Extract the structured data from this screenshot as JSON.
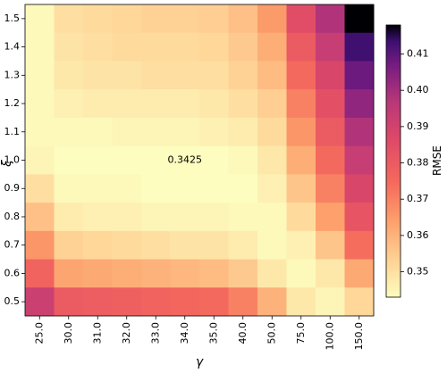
{
  "chart_data": {
    "type": "heatmap",
    "xlabel": "γ",
    "ylabel": "ξ",
    "x": [
      "25.0",
      "30.0",
      "31.0",
      "32.0",
      "33.0",
      "34.0",
      "35.0",
      "40.0",
      "50.0",
      "75.0",
      "100.0",
      "150.0"
    ],
    "y": [
      "1.5",
      "1.4",
      "1.3",
      "1.2",
      "1.1",
      "1.0",
      "0.9",
      "0.8",
      "0.7",
      "0.6",
      "0.5"
    ],
    "values": [
      [
        0.344,
        0.35,
        0.351,
        0.352,
        0.353,
        0.353,
        0.354,
        0.357,
        0.365,
        0.385,
        0.398,
        0.418
      ],
      [
        0.344,
        0.349,
        0.35,
        0.351,
        0.351,
        0.351,
        0.352,
        0.355,
        0.361,
        0.38,
        0.393,
        0.413
      ],
      [
        0.344,
        0.348,
        0.349,
        0.349,
        0.35,
        0.35,
        0.35,
        0.353,
        0.358,
        0.375,
        0.388,
        0.408
      ],
      [
        0.344,
        0.346,
        0.347,
        0.347,
        0.347,
        0.347,
        0.348,
        0.35,
        0.354,
        0.37,
        0.384,
        0.403
      ],
      [
        0.344,
        0.344,
        0.344,
        0.345,
        0.345,
        0.345,
        0.346,
        0.347,
        0.351,
        0.366,
        0.38,
        0.398
      ],
      [
        0.345,
        0.343,
        0.343,
        0.343,
        0.343,
        0.3425,
        0.343,
        0.344,
        0.348,
        0.361,
        0.375,
        0.393
      ],
      [
        0.35,
        0.344,
        0.344,
        0.344,
        0.343,
        0.343,
        0.343,
        0.343,
        0.346,
        0.356,
        0.37,
        0.388
      ],
      [
        0.357,
        0.347,
        0.346,
        0.346,
        0.345,
        0.345,
        0.345,
        0.344,
        0.344,
        0.351,
        0.364,
        0.382
      ],
      [
        0.366,
        0.353,
        0.352,
        0.351,
        0.35,
        0.349,
        0.349,
        0.347,
        0.344,
        0.346,
        0.356,
        0.374
      ],
      [
        0.377,
        0.363,
        0.362,
        0.361,
        0.36,
        0.359,
        0.358,
        0.355,
        0.348,
        0.344,
        0.348,
        0.362
      ],
      [
        0.392,
        0.38,
        0.379,
        0.378,
        0.377,
        0.376,
        0.375,
        0.37,
        0.36,
        0.348,
        0.345,
        0.352
      ]
    ],
    "annotations": [
      {
        "x": "34.0",
        "y": "1.0",
        "text": "0.3425"
      }
    ],
    "colorbar": {
      "label": "RMSE",
      "ticks": [
        "0.35",
        "0.36",
        "0.37",
        "0.38",
        "0.39",
        "0.40",
        "0.41"
      ],
      "range": [
        0.343,
        0.418
      ],
      "colormap": "magma_r"
    },
    "grid": false
  }
}
